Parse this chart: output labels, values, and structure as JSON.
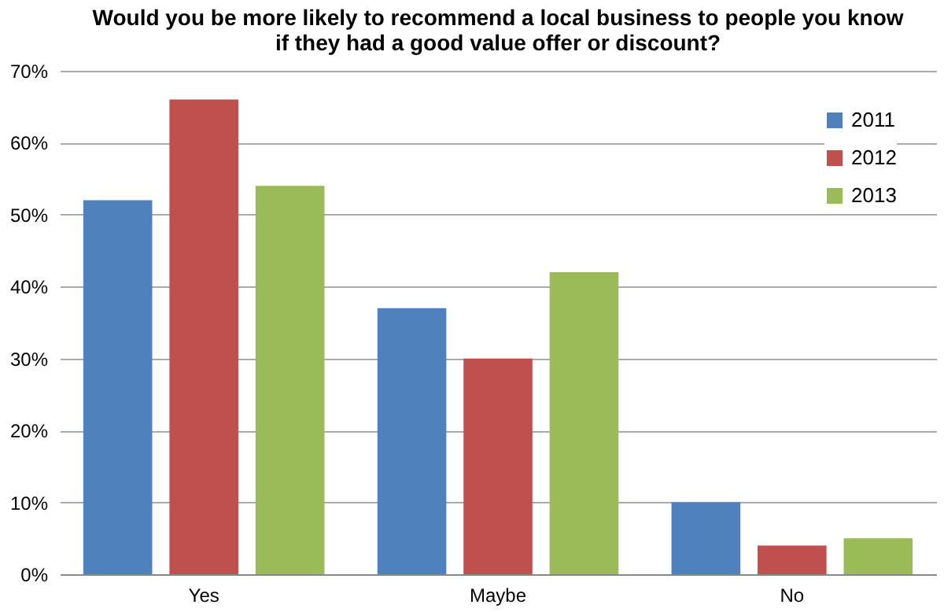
{
  "chart_data": {
    "type": "bar",
    "title": "Would you be more likely to recommend a local business to people you know\nif they had a good value offer or discount?",
    "categories": [
      "Yes",
      "Maybe",
      "No"
    ],
    "series": [
      {
        "name": "2011",
        "color": "#4f81bd",
        "values": [
          52,
          37,
          10
        ]
      },
      {
        "name": "2012",
        "color": "#c0504d",
        "values": [
          66,
          30,
          4
        ]
      },
      {
        "name": "2013",
        "color": "#9bbb59",
        "values": [
          54,
          42,
          5
        ]
      }
    ],
    "ylim": [
      0,
      70
    ],
    "yticks": [
      {
        "value": 0,
        "label": "0%"
      },
      {
        "value": 10,
        "label": "10%"
      },
      {
        "value": 20,
        "label": "20%"
      },
      {
        "value": 30,
        "label": "30%"
      },
      {
        "value": 40,
        "label": "40%"
      },
      {
        "value": 50,
        "label": "50%"
      },
      {
        "value": 60,
        "label": "60%"
      },
      {
        "value": 70,
        "label": "70%"
      }
    ],
    "grid": "y",
    "legend": "top right"
  }
}
